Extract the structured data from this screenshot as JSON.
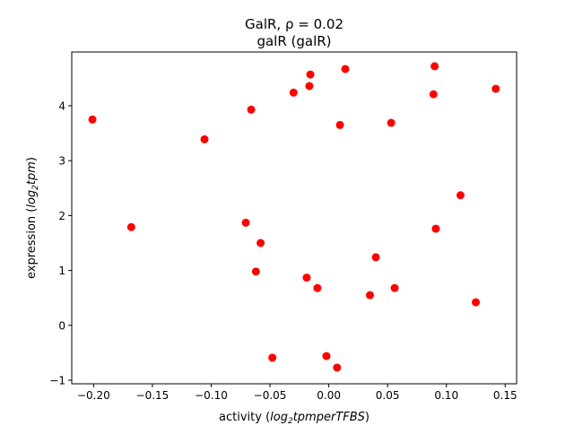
{
  "chart_data": {
    "type": "scatter",
    "title_line1": "GalR, ρ = 0.02",
    "title_line2": "galR (galR)",
    "xlabel": {
      "prefix": "activity (",
      "math_a": "log",
      "sub": "2",
      "math_b": "tpmperTFBS",
      "suffix": ")"
    },
    "ylabel": {
      "prefix": "expression (",
      "math_a": "log",
      "sub": "2",
      "math_b": "tpm",
      "suffix": ")"
    },
    "xlim": [
      -0.2186,
      0.1597
    ],
    "ylim": [
      -1.065,
      4.98
    ],
    "xticks": [
      -0.2,
      -0.15,
      -0.1,
      -0.05,
      0.0,
      0.05,
      0.1,
      0.15
    ],
    "xtick_labels": [
      "−0.20",
      "−0.15",
      "−0.10",
      "−0.05",
      "0.00",
      "0.05",
      "0.10",
      "0.15"
    ],
    "yticks": [
      -1,
      0,
      1,
      2,
      3,
      4
    ],
    "ytick_labels": [
      "−1",
      "0",
      "1",
      "2",
      "3",
      "4"
    ],
    "marker_color": "#ff0000",
    "grid": false,
    "points": [
      {
        "x": -0.201,
        "y": 3.75
      },
      {
        "x": -0.1057,
        "y": 3.39
      },
      {
        "x": -0.168,
        "y": 1.79
      },
      {
        "x": -0.0706,
        "y": 1.87
      },
      {
        "x": -0.066,
        "y": 3.93
      },
      {
        "x": -0.062,
        "y": 0.98
      },
      {
        "x": -0.058,
        "y": 1.5
      },
      {
        "x": -0.048,
        "y": -0.59
      },
      {
        "x": -0.03,
        "y": 4.24
      },
      {
        "x": -0.0157,
        "y": 4.57
      },
      {
        "x": -0.0165,
        "y": 4.36
      },
      {
        "x": -0.0188,
        "y": 0.87
      },
      {
        "x": -0.0097,
        "y": 0.68
      },
      {
        "x": -0.002,
        "y": -0.56
      },
      {
        "x": 0.007,
        "y": -0.77
      },
      {
        "x": 0.0095,
        "y": 3.65
      },
      {
        "x": 0.014,
        "y": 4.67
      },
      {
        "x": 0.035,
        "y": 0.55
      },
      {
        "x": 0.04,
        "y": 1.24
      },
      {
        "x": 0.053,
        "y": 3.69
      },
      {
        "x": 0.056,
        "y": 0.68
      },
      {
        "x": 0.089,
        "y": 4.21
      },
      {
        "x": 0.09,
        "y": 4.72
      },
      {
        "x": 0.091,
        "y": 1.76
      },
      {
        "x": 0.112,
        "y": 2.37
      },
      {
        "x": 0.125,
        "y": 0.42
      },
      {
        "x": 0.142,
        "y": 4.31
      }
    ]
  }
}
